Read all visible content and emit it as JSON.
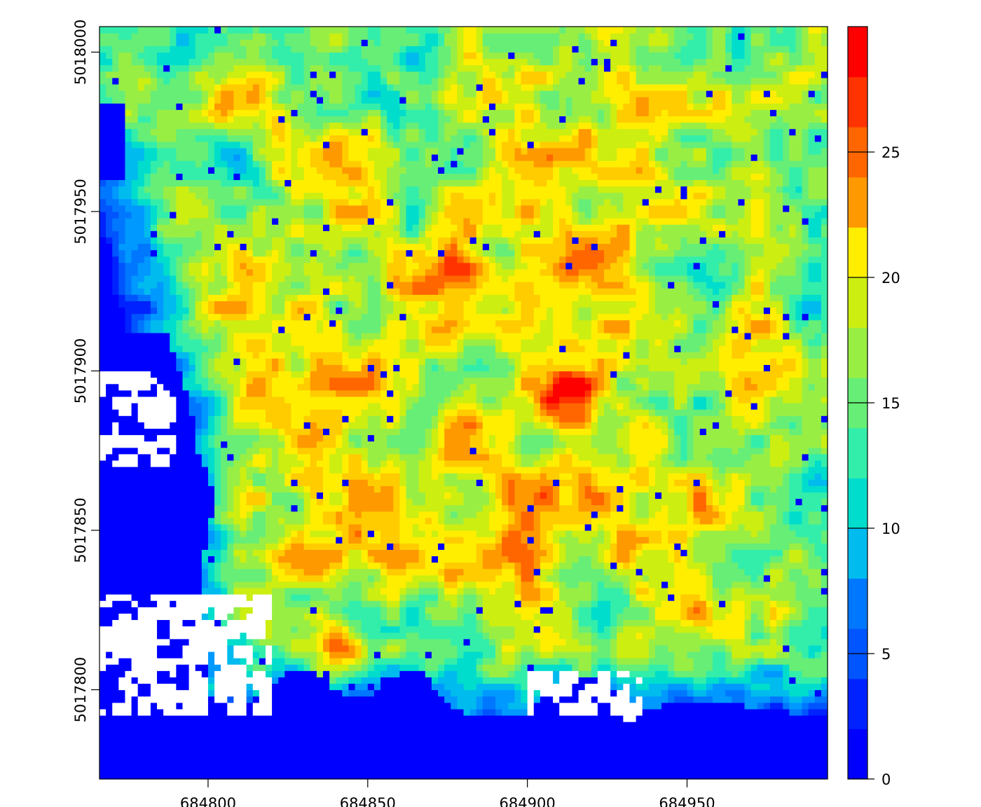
{
  "chart_data": {
    "type": "heatmap",
    "title": "",
    "xlabel": "",
    "ylabel": "",
    "xlim": [
      684766,
      684994
    ],
    "ylim": [
      5017772,
      5018008
    ],
    "x_ticks": [
      684800,
      684850,
      684900,
      684950
    ],
    "x_tick_labels": [
      "684800",
      "684850",
      "684900",
      "684950"
    ],
    "y_ticks": [
      5017800,
      5017850,
      5017900,
      5017950,
      5018000
    ],
    "y_tick_labels": [
      "5017800",
      "5017850",
      "5017900",
      "5017950",
      "5018000"
    ],
    "cell_size": 2,
    "legend": {
      "placement": "right",
      "range": [
        0,
        30
      ],
      "ticks": [
        0,
        5,
        10,
        15,
        20,
        25
      ],
      "tick_labels": [
        "0",
        "5",
        "10",
        "15",
        "20",
        "25"
      ],
      "bins": 15,
      "colors": [
        "#0000ff",
        "#0022ff",
        "#0055ff",
        "#0077ff",
        "#0099ff",
        "#00bbee",
        "#00ddcc",
        "#33eeaa",
        "#66ee77",
        "#99ee44",
        "#ccee11",
        "#ffee00",
        "#ffcc00",
        "#ff9900",
        "#ff6600",
        "#ff3300",
        "#ff0000"
      ]
    },
    "field_features": {
      "blue_zero_regions": [
        {
          "x": [
            684766,
            684994
          ],
          "y": [
            5017772,
            5017793
          ]
        },
        {
          "x": [
            684766,
            684800
          ],
          "y": [
            5017793,
            5017905
          ]
        }
      ],
      "nodata_regions": [
        {
          "x": [
            684766,
            684790
          ],
          "y": [
            5017870,
            5017900
          ]
        },
        {
          "x": [
            684766,
            684820
          ],
          "y": [
            5017792,
            5017830
          ]
        },
        {
          "x": [
            684900,
            684935
          ],
          "y": [
            5017790,
            5017805
          ]
        }
      ],
      "hot_spots": [
        {
          "x": 684810,
          "y": 5017985,
          "value": 25
        },
        {
          "x": 684868,
          "y": 5017930,
          "value": 26
        },
        {
          "x": 684880,
          "y": 5017932,
          "value": 28
        },
        {
          "x": 684910,
          "y": 5017893,
          "value": 29
        },
        {
          "x": 684840,
          "y": 5017816,
          "value": 28
        },
        {
          "x": 684975,
          "y": 5017825,
          "value": 25
        },
        {
          "x": 684920,
          "y": 5017935,
          "value": 26
        },
        {
          "x": 684900,
          "y": 5017925,
          "value": 26
        },
        {
          "x": 684855,
          "y": 5017855,
          "value": 25
        }
      ]
    }
  }
}
